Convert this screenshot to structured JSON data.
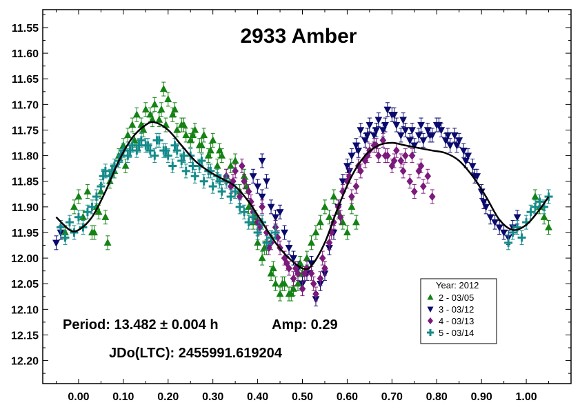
{
  "chart_data": {
    "type": "scatter",
    "title": "2933 Amber",
    "xlabel": "",
    "ylabel": "",
    "xlim": [
      -0.08,
      1.1
    ],
    "ylim": [
      12.245,
      11.515
    ],
    "y_inverted": true,
    "x_ticks": [
      0.0,
      0.1,
      0.2,
      0.3,
      0.4,
      0.5,
      0.6,
      0.7,
      0.8,
      0.9,
      1.0
    ],
    "x_tick_labels": [
      "0.00",
      "0.10",
      "0.20",
      "0.30",
      "0.40",
      "0.50",
      "0.60",
      "0.70",
      "0.80",
      "0.90",
      "1.00"
    ],
    "y_ticks": [
      11.55,
      11.6,
      11.65,
      11.7,
      11.75,
      11.8,
      11.85,
      11.9,
      11.95,
      12.0,
      12.05,
      12.1,
      12.15,
      12.2
    ],
    "y_tick_labels": [
      "11.55",
      "11.60",
      "11.65",
      "11.70",
      "11.75",
      "11.80",
      "11.85",
      "11.90",
      "11.95",
      "12.00",
      "12.05",
      "12.10",
      "12.15",
      "12.20"
    ],
    "grid": false,
    "legend_position": "bottom-right",
    "legend_title": "Year: 2012",
    "annotations": [
      "Period: 13.482 ± 0.004 h",
      "Amp: 0.29",
      "JDo(LTC): 2455991.619204"
    ],
    "fit_curve": {
      "color": "#000000",
      "x": [
        -0.05,
        -0.02,
        0.0,
        0.03,
        0.06,
        0.09,
        0.12,
        0.15,
        0.17,
        0.2,
        0.23,
        0.26,
        0.29,
        0.32,
        0.35,
        0.38,
        0.41,
        0.44,
        0.47,
        0.5,
        0.52,
        0.55,
        0.58,
        0.61,
        0.64,
        0.67,
        0.7,
        0.73,
        0.76,
        0.79,
        0.82,
        0.85,
        0.88,
        0.91,
        0.94,
        0.97,
        1.0,
        1.03,
        1.05
      ],
      "y": [
        11.92,
        11.945,
        11.945,
        11.92,
        11.87,
        11.81,
        11.765,
        11.74,
        11.735,
        11.75,
        11.78,
        11.81,
        11.83,
        11.845,
        11.86,
        11.89,
        11.93,
        11.97,
        12.0,
        12.02,
        12.015,
        11.97,
        11.9,
        11.84,
        11.8,
        11.78,
        11.775,
        11.78,
        11.785,
        11.79,
        11.795,
        11.81,
        11.84,
        11.88,
        11.925,
        11.945,
        11.935,
        11.905,
        11.88
      ]
    },
    "series": [
      {
        "name": "2 - 03/05",
        "marker": "triangle-up",
        "color": "#148214",
        "x": [
          -0.03,
          -0.01,
          0.0,
          0.01,
          0.02,
          0.03,
          0.04,
          0.05,
          0.06,
          0.065,
          0.07,
          0.08,
          0.09,
          0.1,
          0.11,
          0.12,
          0.13,
          0.14,
          0.15,
          0.16,
          0.17,
          0.18,
          0.19,
          0.2,
          0.21,
          0.22,
          0.23,
          0.24,
          0.25,
          0.26,
          0.27,
          0.28,
          0.29,
          0.3,
          0.31,
          0.32,
          0.33,
          0.34,
          0.35,
          0.36,
          0.37,
          0.38,
          0.39,
          0.4,
          0.41,
          0.42,
          0.43,
          0.44,
          0.45,
          0.46,
          0.47,
          0.48,
          0.49,
          0.5,
          0.51,
          0.52,
          0.53,
          0.54,
          0.55,
          0.56,
          0.57,
          0.58,
          0.59,
          0.6,
          0.61,
          0.62,
          1.02,
          1.03,
          1.04,
          1.05,
          0.035,
          0.045,
          0.105,
          0.125,
          0.145,
          0.165,
          0.185,
          0.195,
          0.215,
          0.235,
          0.255,
          0.275,
          0.295,
          0.315,
          0.375,
          0.395,
          0.415,
          0.435,
          0.455,
          0.475,
          0.495
        ],
        "y": [
          11.95,
          11.9,
          11.88,
          11.92,
          11.87,
          11.95,
          11.9,
          11.87,
          11.92,
          11.97,
          11.85,
          11.83,
          11.8,
          11.78,
          11.76,
          11.74,
          11.72,
          11.74,
          11.71,
          11.72,
          11.7,
          11.73,
          11.67,
          11.69,
          11.72,
          11.75,
          11.74,
          11.76,
          11.77,
          11.75,
          11.78,
          11.76,
          11.8,
          11.77,
          11.82,
          11.8,
          11.84,
          11.82,
          11.81,
          11.87,
          11.84,
          11.9,
          11.93,
          11.97,
          12.0,
          11.98,
          12.03,
          12.05,
          12.07,
          12.05,
          12.07,
          12.06,
          12.05,
          12.03,
          12.0,
          11.97,
          11.95,
          11.93,
          11.9,
          11.92,
          11.88,
          11.91,
          11.93,
          11.95,
          11.9,
          11.93,
          11.88,
          11.9,
          11.92,
          11.94,
          11.95,
          11.91,
          11.82,
          11.77,
          11.75,
          11.73,
          11.71,
          11.74,
          11.71,
          11.74,
          11.76,
          11.78,
          11.79,
          11.79,
          11.86,
          11.92,
          11.98,
          12.02,
          12.05,
          12.07,
          12.01
        ]
      },
      {
        "name": "3 - 03/12",
        "marker": "triangle-down",
        "color": "#0a0a6e",
        "x": [
          -0.05,
          -0.04,
          0.39,
          0.4,
          0.41,
          0.42,
          0.43,
          0.44,
          0.45,
          0.46,
          0.47,
          0.48,
          0.49,
          0.5,
          0.51,
          0.52,
          0.53,
          0.54,
          0.55,
          0.56,
          0.57,
          0.58,
          0.59,
          0.6,
          0.61,
          0.62,
          0.63,
          0.64,
          0.65,
          0.66,
          0.67,
          0.68,
          0.69,
          0.7,
          0.71,
          0.72,
          0.73,
          0.74,
          0.75,
          0.76,
          0.77,
          0.78,
          0.79,
          0.8,
          0.81,
          0.82,
          0.83,
          0.84,
          0.85,
          0.86,
          0.87,
          0.88,
          0.89,
          0.9,
          0.91,
          0.92,
          0.93,
          0.94,
          0.95,
          0.96,
          0.97,
          0.98,
          0.41,
          0.605,
          0.625,
          0.645,
          0.665,
          0.685,
          0.705,
          0.725,
          0.745,
          0.765,
          0.785,
          0.805,
          0.825,
          0.845,
          0.865,
          0.885,
          0.905
        ],
        "y": [
          11.97,
          11.95,
          11.84,
          11.86,
          11.88,
          11.85,
          11.9,
          11.92,
          11.91,
          11.95,
          11.98,
          12.0,
          12.02,
          12.05,
          12.03,
          12.01,
          12.08,
          12.05,
          12.03,
          11.98,
          11.95,
          11.9,
          11.85,
          11.82,
          11.8,
          11.78,
          11.75,
          11.77,
          11.74,
          11.76,
          11.73,
          11.75,
          11.71,
          11.72,
          11.74,
          11.76,
          11.75,
          11.77,
          11.78,
          11.76,
          11.77,
          11.75,
          11.76,
          11.74,
          11.75,
          11.77,
          11.78,
          11.76,
          11.77,
          11.79,
          11.8,
          11.82,
          11.84,
          11.87,
          11.9,
          11.92,
          11.93,
          11.94,
          11.95,
          11.96,
          11.94,
          11.92,
          11.81,
          11.83,
          11.79,
          11.76,
          11.75,
          11.74,
          11.72,
          11.73,
          11.75,
          11.74,
          11.76,
          11.74,
          11.76,
          11.78,
          11.81,
          11.84,
          11.89
        ]
      },
      {
        "name": "4 - 03/13",
        "marker": "diamond",
        "color": "#7b1a7b",
        "x": [
          0.33,
          0.34,
          0.35,
          0.36,
          0.37,
          0.38,
          0.39,
          0.4,
          0.41,
          0.42,
          0.43,
          0.44,
          0.45,
          0.46,
          0.47,
          0.48,
          0.49,
          0.5,
          0.51,
          0.52,
          0.53,
          0.54,
          0.55,
          0.56,
          0.57,
          0.58,
          0.59,
          0.6,
          0.61,
          0.62,
          0.63,
          0.64,
          0.65,
          0.66,
          0.67,
          0.68,
          0.69,
          0.7,
          0.71,
          0.72,
          0.73,
          0.74,
          0.75,
          0.76,
          0.77,
          0.78,
          0.79,
          0.345,
          0.365,
          0.385,
          0.405,
          0.425,
          0.445,
          0.465,
          0.485,
          0.505,
          0.525,
          0.545,
          0.565,
          0.585,
          0.605,
          0.625,
          0.645,
          0.665,
          0.685,
          0.705,
          0.725,
          0.745,
          0.765
        ],
        "y": [
          11.84,
          11.86,
          11.83,
          11.88,
          11.85,
          11.87,
          11.91,
          11.93,
          11.9,
          11.95,
          11.97,
          11.94,
          11.98,
          12.0,
          12.02,
          12.04,
          12.03,
          12.06,
          12.02,
          12.03,
          12.07,
          12.04,
          12.02,
          11.97,
          11.93,
          11.9,
          11.87,
          11.85,
          11.88,
          11.86,
          11.83,
          11.81,
          11.79,
          11.78,
          11.8,
          11.77,
          11.8,
          11.82,
          11.79,
          11.81,
          11.8,
          11.85,
          11.87,
          11.83,
          11.86,
          11.84,
          11.88,
          11.85,
          11.82,
          11.89,
          11.94,
          11.98,
          11.96,
          12.01,
          12.02,
          12.03,
          12.05,
          12.0,
          11.95,
          11.92,
          11.84,
          11.82,
          11.8,
          11.78,
          11.8,
          11.81,
          11.83,
          11.8,
          11.82
        ]
      },
      {
        "name": "5 - 03/14",
        "marker": "plus",
        "color": "#148a8a",
        "x": [
          -0.04,
          -0.03,
          -0.02,
          -0.01,
          0.0,
          0.01,
          0.02,
          0.03,
          0.04,
          0.05,
          0.06,
          0.07,
          0.08,
          0.09,
          0.1,
          0.11,
          0.12,
          0.13,
          0.14,
          0.15,
          0.16,
          0.17,
          0.18,
          0.19,
          0.2,
          0.21,
          0.22,
          0.23,
          0.24,
          0.25,
          0.26,
          0.27,
          0.28,
          0.29,
          0.3,
          0.31,
          0.32,
          0.33,
          0.34,
          0.35,
          0.36,
          0.37,
          0.38,
          0.39,
          0.4,
          0.41,
          0.42,
          0.43,
          0.44,
          0.96,
          0.97,
          0.98,
          0.99,
          1.0,
          1.01,
          1.02,
          1.03,
          1.04,
          1.05,
          0.055,
          0.075,
          0.095,
          0.115,
          0.135,
          0.155,
          0.175,
          0.195,
          0.215,
          0.235,
          0.255,
          0.275,
          0.295,
          0.315
        ],
        "y": [
          11.94,
          11.96,
          11.93,
          11.95,
          11.92,
          11.94,
          11.91,
          11.9,
          11.88,
          11.86,
          11.83,
          11.84,
          11.82,
          11.81,
          11.79,
          11.8,
          11.78,
          11.79,
          11.77,
          11.78,
          11.79,
          11.8,
          11.77,
          11.79,
          11.8,
          11.82,
          11.79,
          11.81,
          11.83,
          11.8,
          11.84,
          11.82,
          11.85,
          11.83,
          11.86,
          11.84,
          11.87,
          11.85,
          11.88,
          11.87,
          11.9,
          11.91,
          11.93,
          11.92,
          11.95,
          11.93,
          11.97,
          11.96,
          11.95,
          11.97,
          11.95,
          11.94,
          11.96,
          11.93,
          11.91,
          11.9,
          11.89,
          11.9,
          11.88,
          11.84,
          11.83,
          11.8,
          11.79,
          11.78,
          11.78,
          11.77,
          11.79,
          11.78,
          11.8,
          11.82,
          11.81,
          11.83,
          11.85
        ]
      }
    ]
  }
}
